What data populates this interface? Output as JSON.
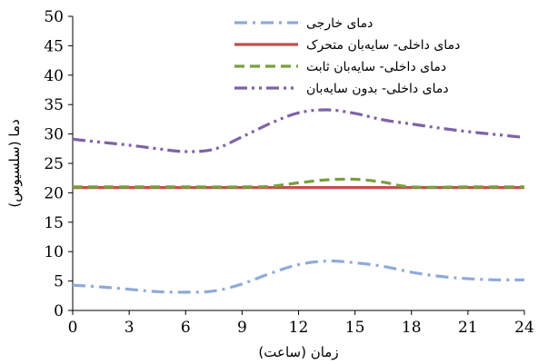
{
  "chart_data": {
    "type": "line",
    "title": "",
    "xlabel": "زمان (ساعت)",
    "ylabel": "دما (سلسیوس)",
    "xlim": [
      0,
      24
    ],
    "ylim": [
      0,
      50
    ],
    "x_ticks": [
      0,
      3,
      6,
      9,
      12,
      15,
      18,
      21,
      24
    ],
    "y_ticks": [
      0,
      5,
      10,
      15,
      20,
      25,
      30,
      35,
      40,
      45,
      50
    ],
    "grid": false,
    "legend_position": "top-right",
    "series": [
      {
        "name": "دمای خارجی",
        "color": "#8eaad8",
        "dash": "dash-dot",
        "x": [
          0,
          1.5,
          3,
          4.5,
          6,
          7.5,
          9,
          10.5,
          12,
          13.5,
          15,
          16.5,
          18,
          19.5,
          21,
          22.5,
          24
        ],
        "y": [
          4.3,
          4.0,
          3.6,
          3.2,
          3.1,
          3.3,
          4.5,
          6.3,
          7.8,
          8.4,
          8.1,
          7.5,
          6.5,
          5.8,
          5.4,
          5.2,
          5.2
        ]
      },
      {
        "name": "دمای داخلی- سایه‌بان متحرک",
        "color": "#c0504d",
        "dash": "solid",
        "x": [
          0,
          3,
          6,
          9,
          12,
          15,
          18,
          21,
          24
        ],
        "y": [
          20.9,
          20.9,
          20.9,
          20.9,
          20.9,
          20.9,
          20.9,
          20.9,
          20.9
        ]
      },
      {
        "name": "دمای داخلی- سایه‌بان ثابت",
        "color": "#77a03e",
        "dash": "dash",
        "x": [
          0,
          3,
          6,
          9,
          10.5,
          12,
          13.5,
          15,
          16.5,
          18,
          21,
          24
        ],
        "y": [
          21.0,
          21.0,
          21.0,
          21.0,
          21.1,
          21.7,
          22.2,
          22.3,
          21.8,
          21.0,
          21.0,
          21.0
        ]
      },
      {
        "name": "دمای داخلی- بدون سایه‌بان",
        "color": "#7f62a8",
        "dash": "dash-dot-dot",
        "x": [
          0,
          1.5,
          3,
          4.5,
          6,
          7.5,
          9,
          10.5,
          12,
          13.5,
          15,
          16.5,
          18,
          19.5,
          21,
          22.5,
          24
        ],
        "y": [
          29.1,
          28.6,
          28.1,
          27.5,
          27.0,
          27.4,
          29.5,
          31.8,
          33.6,
          34.1,
          33.5,
          32.4,
          31.7,
          31.0,
          30.4,
          29.9,
          29.4
        ]
      }
    ]
  }
}
